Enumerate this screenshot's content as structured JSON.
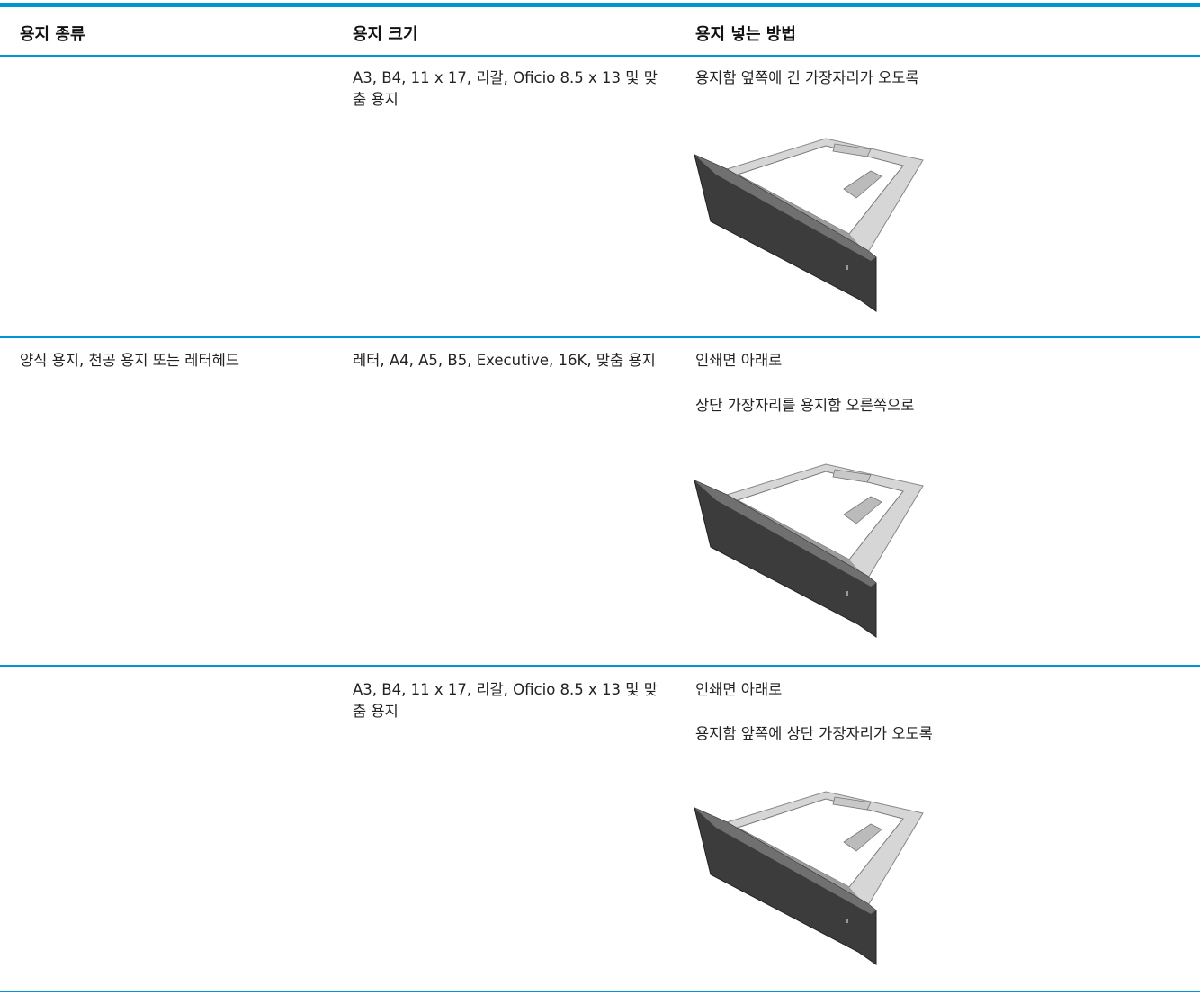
{
  "table": {
    "headers": [
      "용지 종류",
      "용지 크기",
      "용지 넣는 방법"
    ],
    "rows": [
      {
        "paper_size": "A3, B4, 11 x 17, 리갈, Oficio 8.5 x 13 및 맞춤 용지",
        "instructions": [
          "용지함 옆쪽에 긴 가장자리가 오도록"
        ]
      },
      {
        "paper_type": "양식 용지, 천공 용지 또는 레터헤드",
        "paper_size": "레터, A4, A5, B5, Executive, 16K, 맞춤 용지",
        "instructions": [
          "인쇄면 아래로",
          "상단 가장자리를 용지함 오른쪽으로"
        ]
      },
      {
        "paper_size": "A3, B4, 11 x 17, 리갈, Oficio 8.5 x 13 및 맞춤 용지",
        "instructions": [
          "인쇄면 아래로",
          "용지함 앞쪽에 상단 가장자리가 오도록"
        ]
      }
    ]
  }
}
